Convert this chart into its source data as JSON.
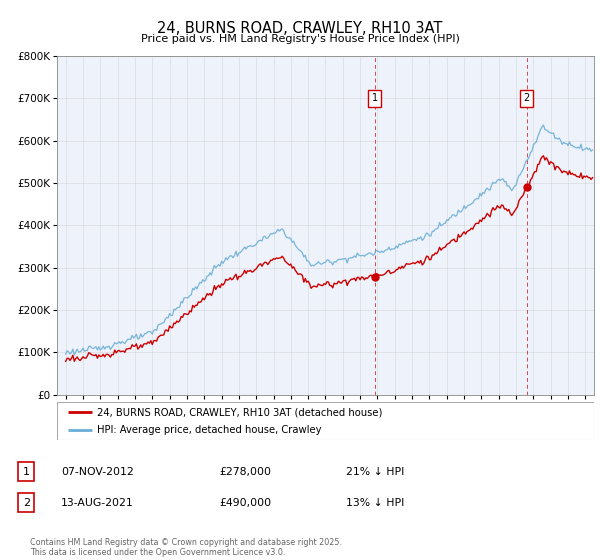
{
  "title": "24, BURNS ROAD, CRAWLEY, RH10 3AT",
  "subtitle": "Price paid vs. HM Land Registry's House Price Index (HPI)",
  "legend_label_red": "24, BURNS ROAD, CRAWLEY, RH10 3AT (detached house)",
  "legend_label_blue": "HPI: Average price, detached house, Crawley",
  "annotation1_date": "07-NOV-2012",
  "annotation1_price": "£278,000",
  "annotation1_hpi": "21% ↓ HPI",
  "annotation1_year": 2012.85,
  "annotation1_value": 278000,
  "annotation2_date": "13-AUG-2021",
  "annotation2_price": "£490,000",
  "annotation2_hpi": "13% ↓ HPI",
  "annotation2_year": 2021.62,
  "annotation2_value": 490000,
  "footer": "Contains HM Land Registry data © Crown copyright and database right 2025.\nThis data is licensed under the Open Government Licence v3.0.",
  "red_color": "#cc0000",
  "blue_color": "#6baed6",
  "bg_color": "#eef2fa",
  "grid_color": "#cccccc",
  "annotation_line_color": "#cc0000",
  "ylim": [
    0,
    800000
  ],
  "xlim_start": 1994.5,
  "xlim_end": 2025.5
}
